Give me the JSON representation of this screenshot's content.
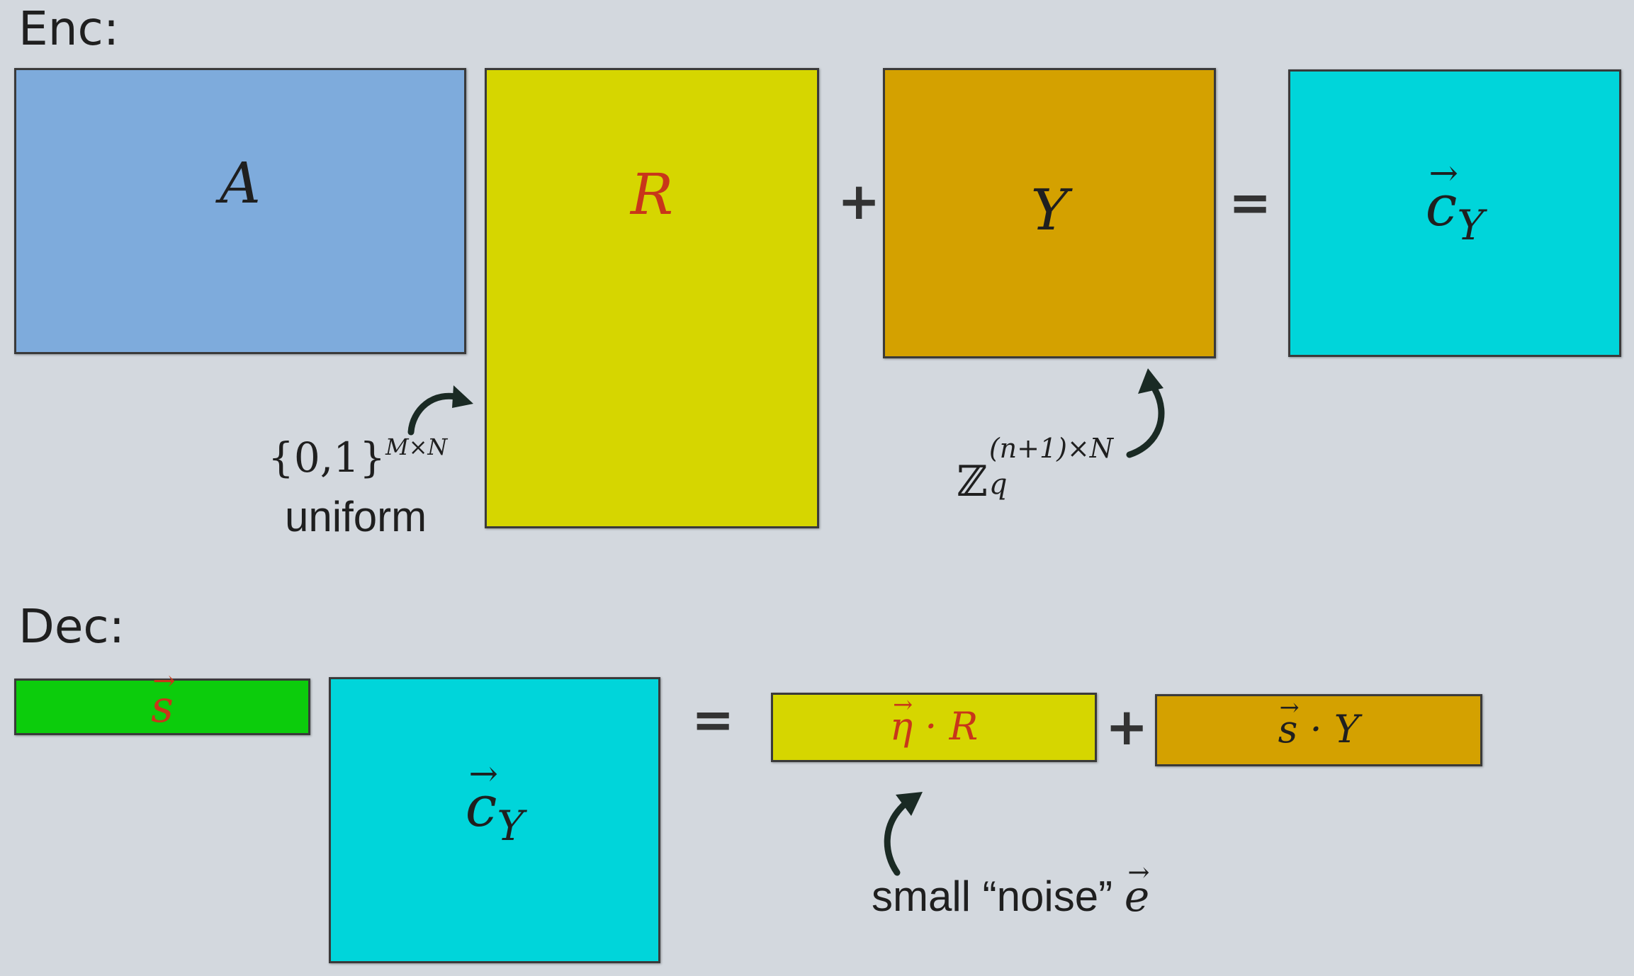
{
  "enc": {
    "title": "Enc:",
    "matrix_a": "A",
    "matrix_r": "R",
    "plus": "+",
    "matrix_y": "Y",
    "equals": "=",
    "cipher_base": "c",
    "cipher_sub": "Y",
    "r_domain_set": "{0,1}",
    "r_domain_exp": "M×N",
    "r_domain_note": "uniform",
    "y_domain_base": "ℤ",
    "y_domain_sub": "q",
    "y_domain_exp": "(n+1)×N"
  },
  "dec": {
    "title": "Dec:",
    "secret": "s",
    "cipher_base": "c",
    "cipher_sub": "Y",
    "equals": "=",
    "eta_vec": "η",
    "eta_op": " · R",
    "plus": "+",
    "s_vec": "s",
    "s_op": " · Y",
    "noise_label": "small “noise” ",
    "noise_symbol": "e"
  },
  "colors": {
    "background": "#d3d8de",
    "matrix_a": "#7eabdc",
    "matrix_r": "#d6d600",
    "matrix_y": "#d4a100",
    "cipher": "#00d5da",
    "secret": "#0ccc0c",
    "red_text": "#c8361a",
    "dark_text": "#1f1f1f"
  }
}
